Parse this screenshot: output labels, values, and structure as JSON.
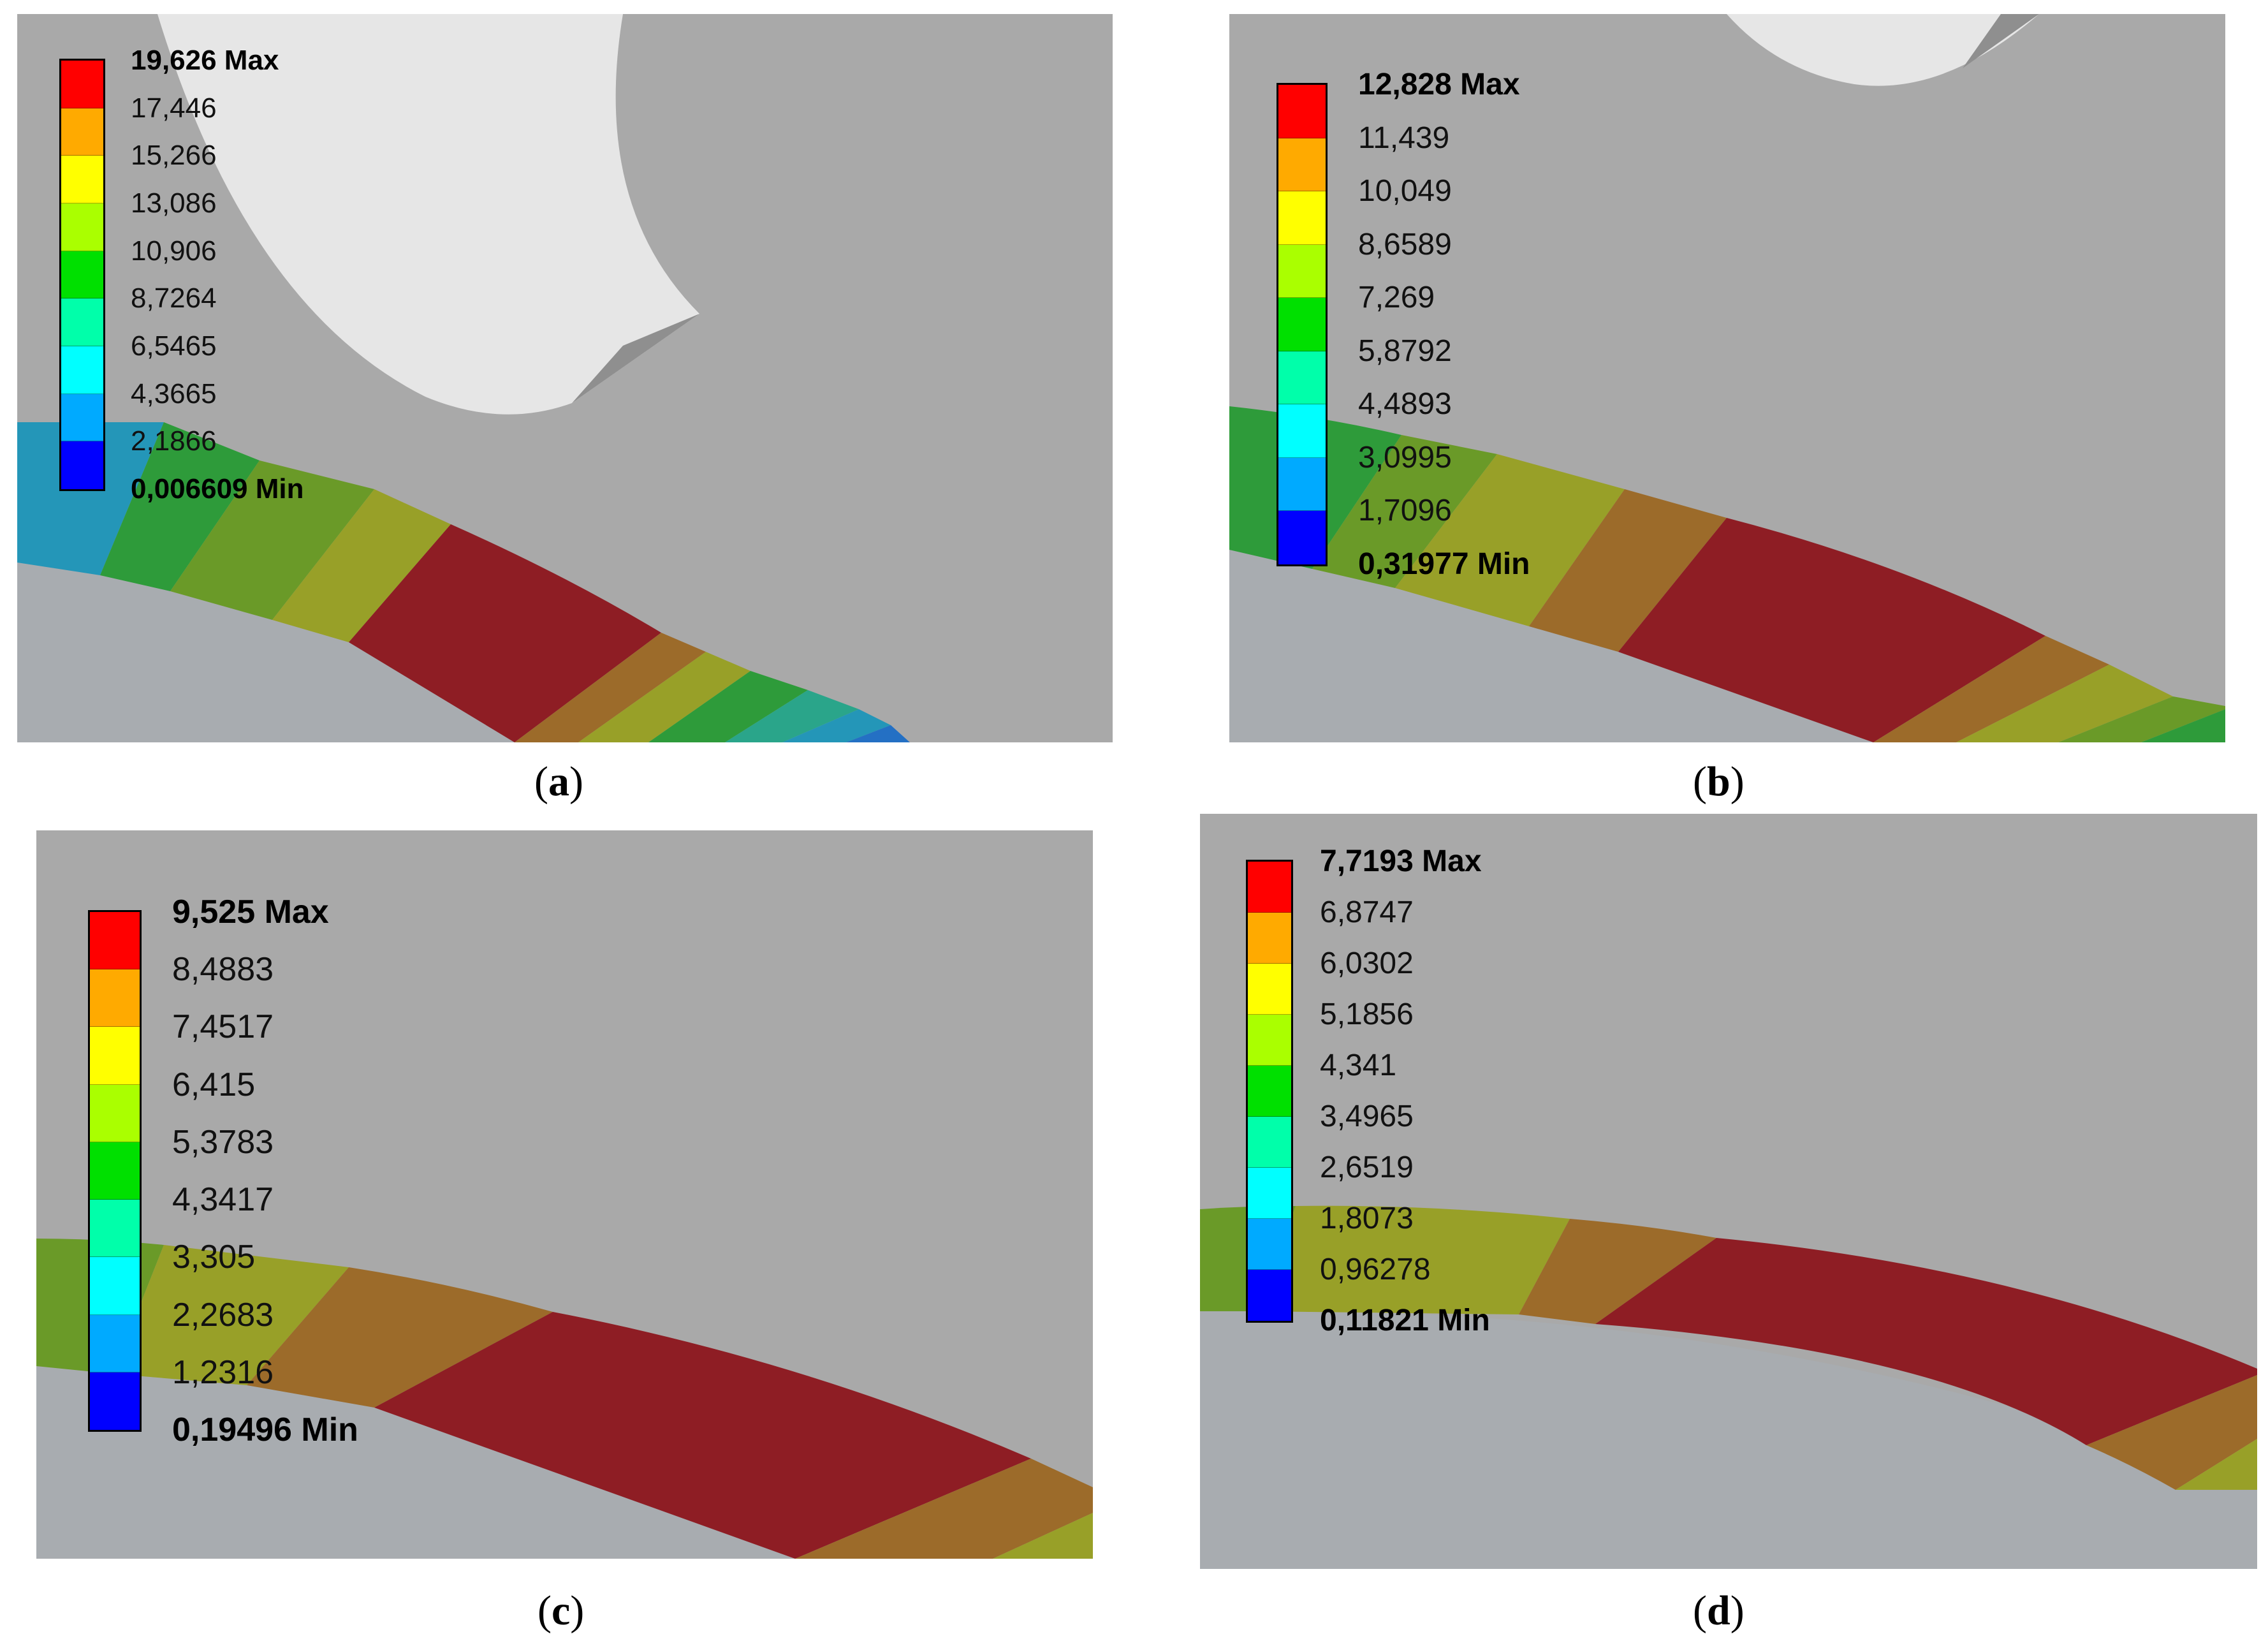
{
  "colors": {
    "legend": [
      "#ff0000",
      "#ffaa00",
      "#ffff00",
      "#aaff00",
      "#00e000",
      "#00ffaa",
      "#00ffff",
      "#00aaff",
      "#0000ff"
    ],
    "background": "#a9a9a9",
    "part": "#a8acb0",
    "hole": "#e6e6e6",
    "band": [
      "#8e1d24",
      "#9c6b2a",
      "#98a028",
      "#6a9a28",
      "#2e9b3a",
      "#2aa58a",
      "#2496b8",
      "#2470c4"
    ]
  },
  "panels": [
    {
      "id": "a",
      "caption": {
        "open": "(",
        "letter": "a",
        "close": ")"
      },
      "legend": {
        "max": "19,626 Max",
        "labels": [
          "17,446",
          "15,266",
          "13,086",
          "10,906",
          "8,7264",
          "6,5465",
          "4,3665",
          "2,1866"
        ],
        "min": "0,006609 Min"
      }
    },
    {
      "id": "b",
      "caption": {
        "open": "(",
        "letter": "b",
        "close": ")"
      },
      "legend": {
        "max": "12,828 Max",
        "labels": [
          "11,439",
          "10,049",
          "8,6589",
          "7,269",
          "5,8792",
          "4,4893",
          "3,0995",
          "1,7096"
        ],
        "min": "0,31977 Min"
      }
    },
    {
      "id": "c",
      "caption": {
        "open": "(",
        "letter": "c",
        "close": ")"
      },
      "legend": {
        "max": "9,525 Max",
        "labels": [
          "8,4883",
          "7,4517",
          "6,415",
          "5,3783",
          "4,3417",
          "3,305",
          "2,2683",
          "1,2316"
        ],
        "min": "0,19496 Min"
      }
    },
    {
      "id": "d",
      "caption": {
        "open": "(",
        "letter": "d",
        "close": ")"
      },
      "legend": {
        "max": "7,7193 Max",
        "labels": [
          "6,8747",
          "6,0302",
          "5,1856",
          "4,341",
          "3,4965",
          "2,6519",
          "1,8073",
          "0,96278"
        ],
        "min": "0,11821 Min"
      }
    }
  ]
}
